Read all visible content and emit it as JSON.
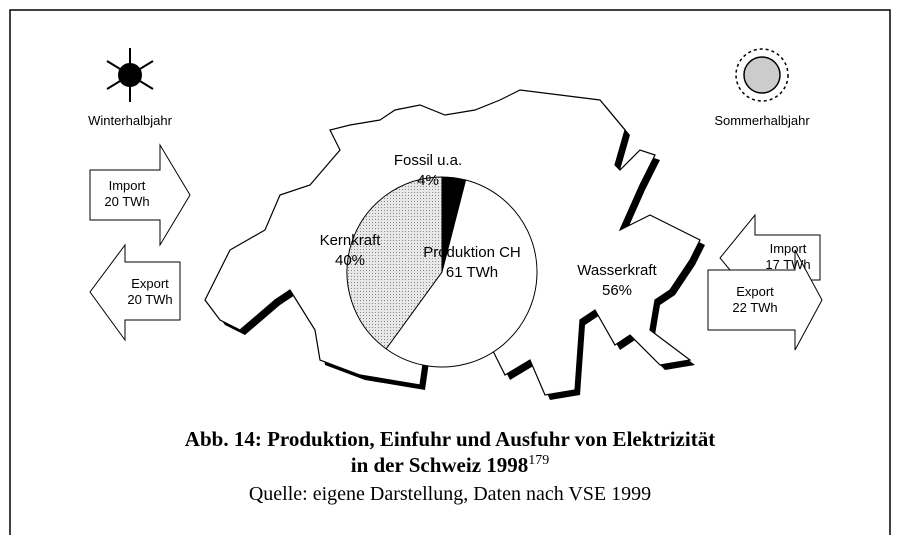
{
  "winter": {
    "label": "Winterhalbjahr",
    "import": [
      "Import",
      "20 TWh"
    ],
    "export": [
      "Export",
      "20 TWh"
    ]
  },
  "summer": {
    "label": "Sommerhalbjahr",
    "import": [
      "Import",
      "17 TWh"
    ],
    "export": [
      "Export",
      "22 TWh"
    ]
  },
  "pie": {
    "center": [
      "Produktion CH",
      "61 TWh"
    ],
    "slices": [
      {
        "name": "Fossil u.a.",
        "value": 4,
        "value_label": "4%",
        "color": "#000000"
      },
      {
        "name": "Wasserkraft",
        "value": 56,
        "value_label": "56%",
        "color": "#ffffff"
      },
      {
        "name": "Kernkraft",
        "value": 40,
        "value_label": "40%",
        "color": "url(#dots)"
      }
    ]
  },
  "caption": {
    "line1": "Abb. 14: Produktion, Einfuhr und Ausfuhr von Elektrizität",
    "line2": "in der Schweiz 1998",
    "footnote": "179",
    "source": "Quelle: eigene Darstellung, Daten nach VSE 1999"
  }
}
